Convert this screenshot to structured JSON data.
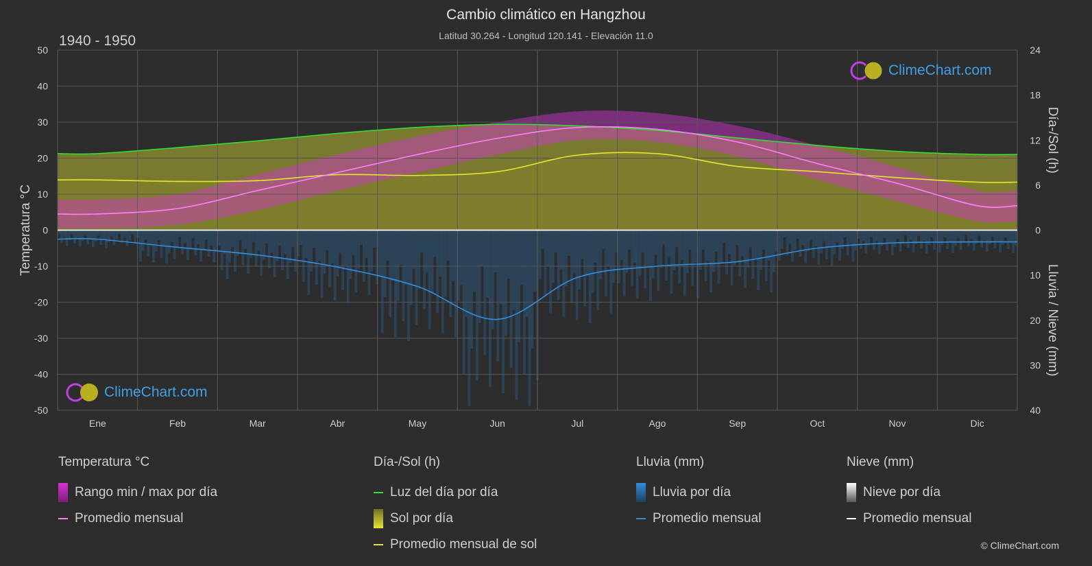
{
  "title": "Cambio climático en Hangzhou",
  "subtitle": "Latitud 30.264 - Longitud 120.141 - Elevación 11.0",
  "period": "1940 - 1950",
  "logo_text": "ClimeChart.com",
  "copyright": "© ClimeChart.com",
  "colors": {
    "background": "#2d2d2d",
    "temp_band": "#d633d6",
    "temp_line": "#ff80ff",
    "daylight": "#33dd33",
    "sun_band": "#b8b832",
    "sun_line": "#e6e62e",
    "rain_band": "#2a6ea6",
    "rain_line": "#2f8fe0",
    "snow_line": "#ffffff",
    "brand": "#3ea0e8"
  },
  "chart_data": {
    "type": "line",
    "x": [
      "Ene",
      "Feb",
      "Mar",
      "Abr",
      "May",
      "Jun",
      "Jul",
      "Ago",
      "Sep",
      "Oct",
      "Nov",
      "Dic"
    ],
    "left_axis": {
      "label": "Temperatura °C",
      "ylim": [
        -50,
        50
      ],
      "ticks": [
        50,
        40,
        30,
        20,
        10,
        0,
        -10,
        -20,
        -30,
        -40,
        -50
      ]
    },
    "right_axis_top": {
      "label": "Día-/Sol (h)",
      "ylim": [
        0,
        24
      ],
      "ticks": [
        24,
        18,
        12,
        6,
        0
      ]
    },
    "right_axis_bottom": {
      "label": "Lluvia / Nieve (mm)",
      "ylim": [
        0,
        40
      ],
      "ticks": [
        0,
        10,
        20,
        30,
        40
      ]
    },
    "series": [
      {
        "name": "Promedio mensual",
        "group": "temperature",
        "unit": "°C",
        "values": [
          4.5,
          6.0,
          11.0,
          16.0,
          21.0,
          25.5,
          28.5,
          28.0,
          24.5,
          18.5,
          13.0,
          6.8
        ]
      },
      {
        "name": "Rango min / max por día",
        "group": "temperature_range",
        "unit": "°C",
        "min": [
          0.5,
          1.5,
          5.5,
          11.0,
          16.0,
          21.0,
          25.0,
          24.5,
          20.5,
          14.0,
          8.0,
          2.5
        ],
        "max": [
          8.5,
          10.0,
          15.5,
          21.0,
          26.0,
          30.0,
          33.0,
          32.5,
          29.0,
          23.5,
          17.5,
          11.0
        ]
      },
      {
        "name": "Luz del día por día",
        "group": "daylight",
        "unit": "h",
        "values": [
          10.2,
          11.0,
          11.9,
          12.9,
          13.7,
          14.1,
          13.9,
          13.3,
          12.3,
          11.3,
          10.5,
          10.1
        ]
      },
      {
        "name": "Promedio mensual de sol",
        "group": "sunshine",
        "unit": "h",
        "values": [
          6.7,
          6.5,
          6.6,
          7.4,
          7.3,
          7.8,
          10.0,
          10.2,
          8.5,
          7.8,
          7.0,
          6.4
        ]
      },
      {
        "name": "Promedio mensual",
        "group": "rain",
        "unit": "mm",
        "values": [
          2.0,
          3.8,
          5.5,
          8.2,
          12.5,
          19.8,
          10.5,
          8.0,
          7.0,
          4.0,
          2.8,
          2.6
        ]
      },
      {
        "name": "Promedio mensual",
        "group": "snow",
        "unit": "mm",
        "values": [
          0.2,
          0.1,
          0.0,
          0.0,
          0.0,
          0.0,
          0.0,
          0.0,
          0.0,
          0.0,
          0.0,
          0.1
        ]
      }
    ]
  },
  "legend": {
    "temperature": {
      "heading": "Temperatura °C",
      "items": [
        "Rango min / max por día",
        "Promedio mensual"
      ]
    },
    "sun": {
      "heading": "Día-/Sol (h)",
      "items": [
        "Luz del día por día",
        "Sol por día",
        "Promedio mensual de sol"
      ]
    },
    "rain": {
      "heading": "Lluvia (mm)",
      "items": [
        "Lluvia por día",
        "Promedio mensual"
      ]
    },
    "snow": {
      "heading": "Nieve (mm)",
      "items": [
        "Nieve por día",
        "Promedio mensual"
      ]
    }
  }
}
